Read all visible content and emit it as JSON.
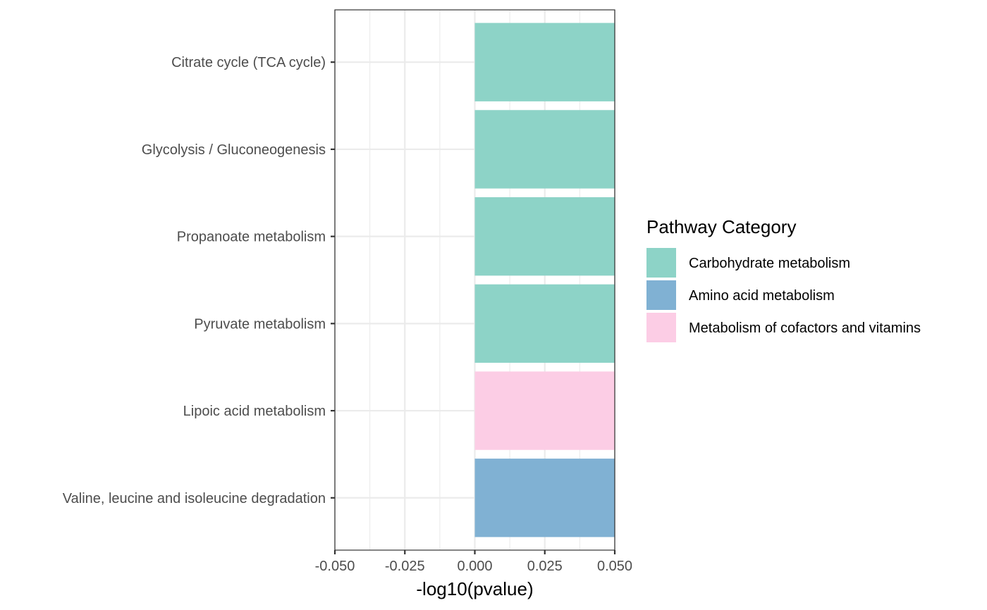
{
  "chart_data": {
    "type": "bar",
    "orientation": "horizontal",
    "categories": [
      "Citrate cycle (TCA cycle)",
      "Glycolysis / Gluconeogenesis",
      "Propanoate metabolism",
      "Pyruvate metabolism",
      "Lipoic acid metabolism",
      "Valine, leucine and isoleucine degradation"
    ],
    "values": [
      0.05,
      0.05,
      0.05,
      0.05,
      0.05,
      0.05
    ],
    "bar_categories": [
      "Carbohydrate metabolism",
      "Carbohydrate metabolism",
      "Carbohydrate metabolism",
      "Carbohydrate metabolism",
      "Metabolism of cofactors and vitamins",
      "Amino acid metabolism"
    ],
    "xlabel": "-log10(pvalue)",
    "ylabel": "",
    "xlim": [
      -0.05,
      0.05
    ],
    "x_ticks": [
      "-0.050",
      "-0.025",
      "0.000",
      "0.025",
      "0.050"
    ],
    "x_tick_values": [
      -0.05,
      -0.025,
      0,
      0.025,
      0.05
    ],
    "grid": true,
    "legend": {
      "title": "Pathway Category",
      "position": "right",
      "entries": [
        {
          "name": "Carbohydrate metabolism",
          "color": "#8dd3c7"
        },
        {
          "name": "Amino acid metabolism",
          "color": "#80b1d3"
        },
        {
          "name": "Metabolism of cofactors and vitamins",
          "color": "#fccde5"
        }
      ]
    }
  }
}
